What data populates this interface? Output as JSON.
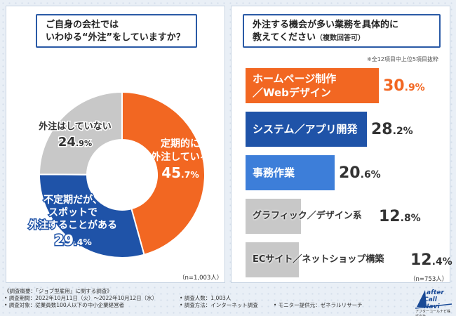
{
  "left": {
    "question_line1": "ご自身の会社では",
    "question_line2": "いわゆる“外注”をしていますか？",
    "n_note": "（n=1,003人）",
    "chart_data": {
      "type": "pie",
      "categories": [
        "定期的に外注している",
        "不定期だが、スポットで外注することがある",
        "外注はしていない"
      ],
      "values": [
        45.7,
        29.4,
        24.9
      ],
      "colors": [
        "#f26722",
        "#1f53a8",
        "#c8c8c8"
      ],
      "slice_labels": [
        {
          "lines": [
            "定期的に",
            "外注している"
          ],
          "int": "45",
          "dec": ".7",
          "unit": "%"
        },
        {
          "lines": [
            "不定期だが、",
            "スポットで",
            "外注することがある"
          ],
          "int": "29",
          "dec": ".4",
          "unit": "%"
        },
        {
          "lines": [
            "外注はしていない"
          ],
          "int": "24",
          "dec": ".9",
          "unit": "%"
        }
      ]
    }
  },
  "right": {
    "question_line1": "外注する機会が多い業務を具体的に",
    "question_line2": "教えてください",
    "question_sub": "（複数回答可）",
    "top_note": "※全12項目中上位5項目抜粋",
    "n_note": "（n=753人）",
    "chart_data": {
      "type": "bar",
      "categories": [
        "ホームページ制作／Webデザイン",
        "システム／アプリ開発",
        "事務作業",
        "グラフィック／デザイン系",
        "ECサイト／ネットショップ構築"
      ],
      "values": [
        30.9,
        28.2,
        20.6,
        12.8,
        12.4
      ],
      "colors": [
        "#f26722",
        "#1f53a8",
        "#3d7ed9",
        "#c8c8c8",
        "#c8c8c8"
      ],
      "label_lines": [
        [
          "ホームページ制作",
          "／Webデザイン"
        ],
        [
          "システム／アプリ開発"
        ],
        [
          "事務作業"
        ],
        [
          "グラフィック／デザイン系"
        ],
        [
          "ECサイト／ネットショップ構築"
        ]
      ],
      "value_int": [
        "30",
        "28",
        "20",
        "12",
        "12"
      ],
      "value_dec": [
        ".9",
        ".2",
        ".6",
        ".8",
        ".4"
      ],
      "unit": "%"
    }
  },
  "footer": {
    "line1": "《調査概要：「ジョブ型雇用」に関する調査》",
    "line2a": "• 調査期間：2022年10月11日（火）～2022年10月12日（水）",
    "line2b": "• 調査人数：1,003人",
    "line3a": "• 調査対象：従業員数100人以下の中小企業経営者",
    "line3b": "• 調査方法：インターネット調査",
    "line3c": "• モニター提供元：ゼネラルリサーチ"
  },
  "logo": {
    "line1": "after",
    "line2": "Call Navi",
    "caption": "アフターコールナビ株式会社"
  }
}
